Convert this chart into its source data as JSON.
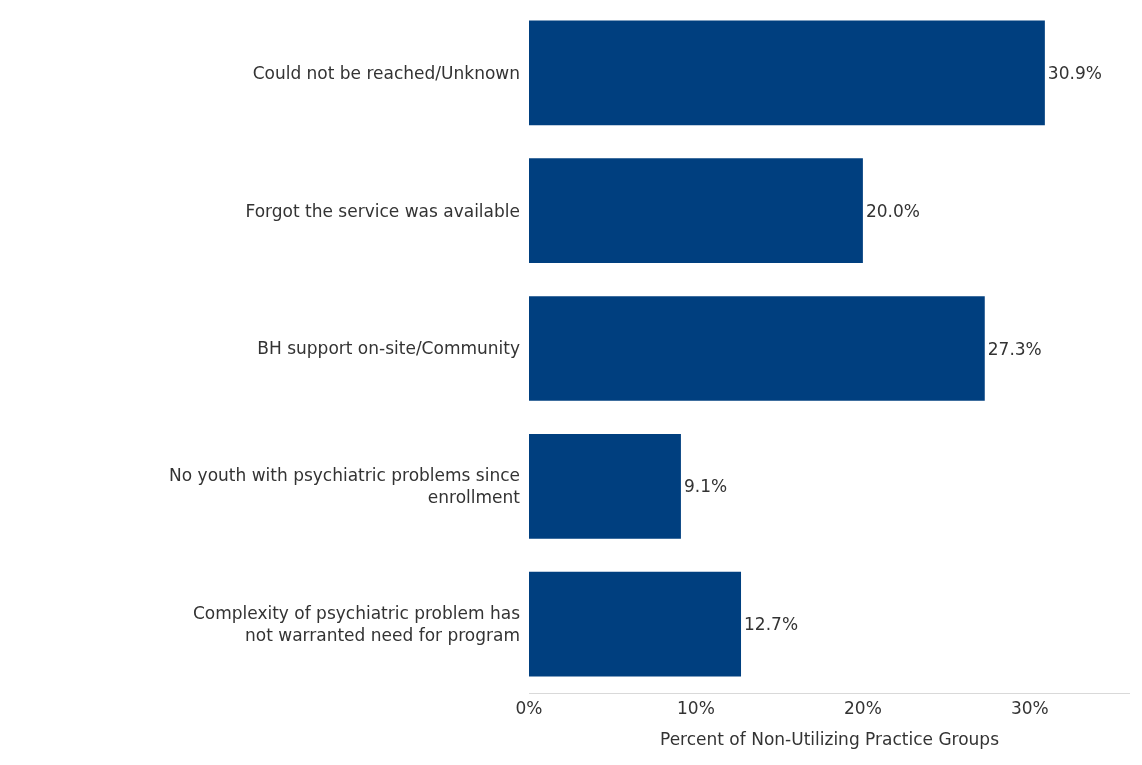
{
  "chart_data": {
    "type": "bar",
    "orientation": "horizontal",
    "xlabel": "Percent of Non-Utilizing Practice Groups",
    "categories": [
      "Could not be reached/Unknown",
      "Forgot the service was available",
      "BH support on-site/Community",
      "No youth with psychiatric problems since enrollment",
      "Complexity of psychiatric problem has not warranted need for program"
    ],
    "values": [
      30.9,
      20.0,
      27.3,
      9.1,
      12.7
    ],
    "value_labels": [
      "30.9%",
      "20.0%",
      "27.3%",
      "9.1%",
      "12.7%"
    ],
    "color": "#003f7f",
    "xlim": [
      0,
      36
    ],
    "xticks": [
      {
        "value": 0,
        "label": "0%"
      },
      {
        "value": 10,
        "label": "10%"
      },
      {
        "value": 20,
        "label": "20%"
      },
      {
        "value": 30,
        "label": "30%"
      }
    ],
    "grid": false
  }
}
